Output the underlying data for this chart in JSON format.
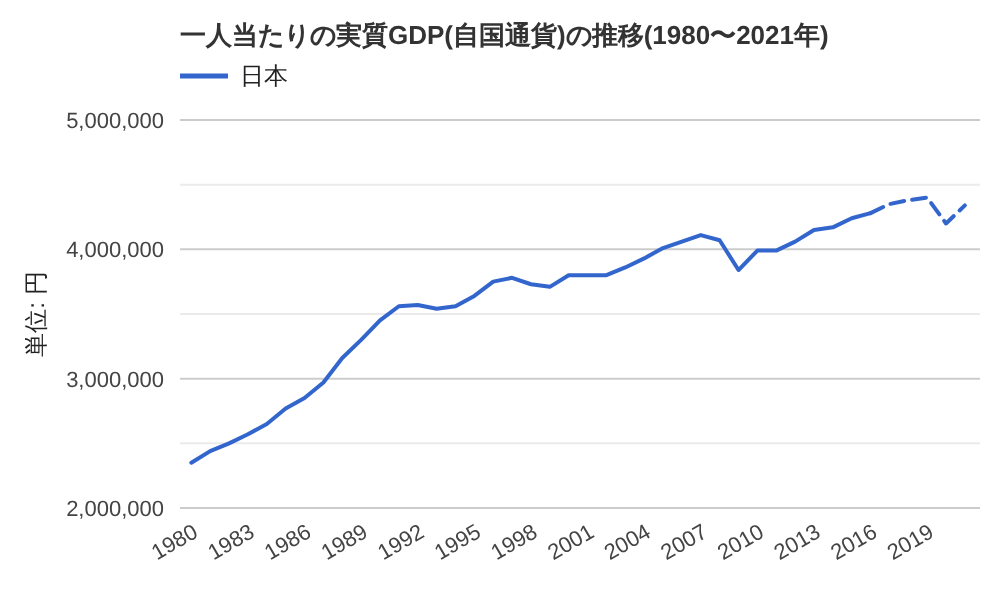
{
  "chart_data": {
    "type": "line",
    "title": "一人当たりの実質GDP(自国通貨)の推移(1980〜2021年)",
    "ylabel": "単位: 円",
    "xlim": [
      1979.4,
      2021.8
    ],
    "xticks": [
      1980,
      1983,
      1986,
      1989,
      1992,
      1995,
      1998,
      2001,
      2004,
      2007,
      2010,
      2013,
      2016,
      2019
    ],
    "ylim": [
      2000000,
      5000000
    ],
    "yticks": [
      {
        "value": 2000000,
        "label": "2,000,000"
      },
      {
        "value": 2500000,
        "label": null
      },
      {
        "value": 3000000,
        "label": "3,000,000"
      },
      {
        "value": 3500000,
        "label": null
      },
      {
        "value": 4000000,
        "label": "4,000,000"
      },
      {
        "value": 4500000,
        "label": null
      },
      {
        "value": 5000000,
        "label": "5,000,000"
      }
    ],
    "grid": "y",
    "legend": "top left",
    "series": [
      {
        "name": "日本",
        "color": "#3366cc",
        "line_style": "solid",
        "x": [
          1980,
          1981,
          1982,
          1983,
          1984,
          1985,
          1986,
          1987,
          1988,
          1989,
          1990,
          1991,
          1992,
          1993,
          1994,
          1995,
          1996,
          1997,
          1998,
          1999,
          2000,
          2001,
          2002,
          2003,
          2004,
          2005,
          2006,
          2007,
          2008,
          2009,
          2010,
          2011,
          2012,
          2013,
          2014,
          2015,
          2016
        ],
        "values": [
          2350000,
          2440000,
          2500000,
          2570000,
          2650000,
          2770000,
          2850000,
          2970000,
          3160000,
          3300000,
          3450000,
          3560000,
          3570000,
          3540000,
          3560000,
          3640000,
          3750000,
          3780000,
          3730000,
          3710000,
          3800000,
          3800000,
          3800000,
          3860000,
          3930000,
          4010000,
          4060000,
          4110000,
          4070000,
          3840000,
          3990000,
          3990000,
          4060000,
          4150000,
          4170000,
          4240000,
          4280000
        ]
      },
      {
        "color": "#3366cc",
        "line_style": "dashed",
        "x": [
          2016,
          2017,
          2018,
          2019,
          2020,
          2021
        ],
        "values": [
          4280000,
          4350000,
          4380000,
          4400000,
          4200000,
          4340000
        ]
      }
    ]
  }
}
